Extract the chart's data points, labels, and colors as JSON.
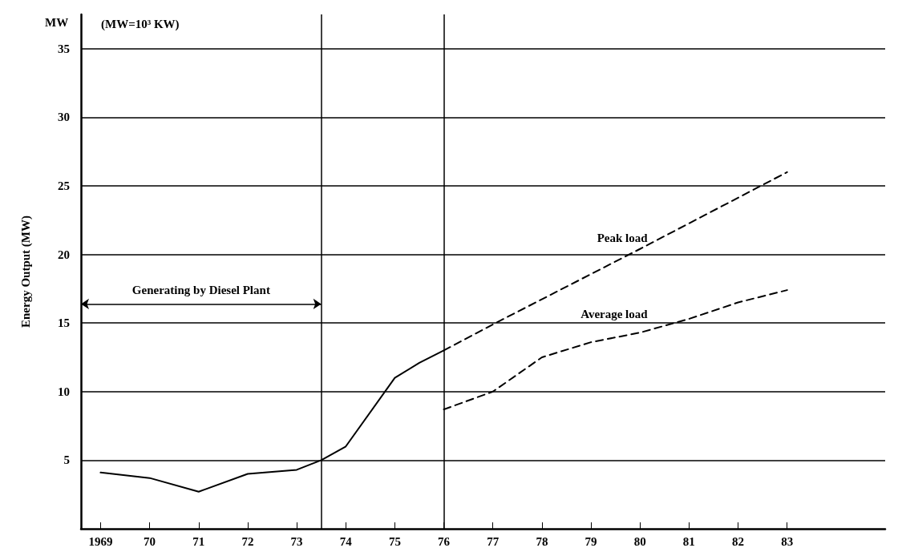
{
  "chart_data": {
    "type": "line",
    "ylabel": "Energy Output (MW)",
    "annotations": [
      "MW",
      "(MW=10³ KW)",
      "Generating by Diesel Plant"
    ],
    "xlim": [
      1968.6,
      1985
    ],
    "xticks": [
      {
        "value": 1969,
        "label": "1969"
      },
      {
        "value": 1970,
        "label": "70"
      },
      {
        "value": 1971,
        "label": "71"
      },
      {
        "value": 1972,
        "label": "72"
      },
      {
        "value": 1973,
        "label": "73"
      },
      {
        "value": 1974,
        "label": "74"
      },
      {
        "value": 1975,
        "label": "75"
      },
      {
        "value": 1976,
        "label": "76"
      },
      {
        "value": 1977,
        "label": "77"
      },
      {
        "value": 1978,
        "label": "78"
      },
      {
        "value": 1979,
        "label": "79"
      },
      {
        "value": 1980,
        "label": "80"
      },
      {
        "value": 1981,
        "label": "81"
      },
      {
        "value": 1982,
        "label": "82"
      },
      {
        "value": 1983,
        "label": "83"
      }
    ],
    "ylim": [
      0,
      37.5
    ],
    "yticks": [
      5,
      10,
      15,
      20,
      25,
      30,
      35
    ],
    "series": [
      {
        "color": "#000000",
        "line_style": "solid",
        "x": [
          1969,
          1970,
          1971,
          1972,
          1973,
          1973.5,
          1974,
          1975,
          1975.5,
          1976
        ],
        "values": [
          4.1,
          3.7,
          2.7,
          4.0,
          4.3,
          5.0,
          6.0,
          11.0,
          12.1,
          13.0
        ]
      },
      {
        "name": "Peak load",
        "color": "#000000",
        "line_style": "dashed",
        "x": [
          1976,
          1977,
          1980,
          1983
        ],
        "values": [
          13.0,
          14.9,
          20.4,
          26.0
        ]
      },
      {
        "name": "Average load",
        "color": "#000000",
        "line_style": "dashed",
        "x": [
          1976,
          1977,
          1978,
          1979,
          1980,
          1981,
          1982,
          1983
        ],
        "values": [
          8.7,
          10.0,
          12.5,
          13.6,
          14.3,
          15.3,
          16.5,
          17.4
        ]
      }
    ],
    "ref_lines": [
      {
        "axis": "x",
        "value": 1973.5,
        "color": "#000000"
      },
      {
        "axis": "x",
        "value": 1976,
        "color": "#000000"
      }
    ],
    "grid": "y",
    "legend": false,
    "marker": "none"
  }
}
